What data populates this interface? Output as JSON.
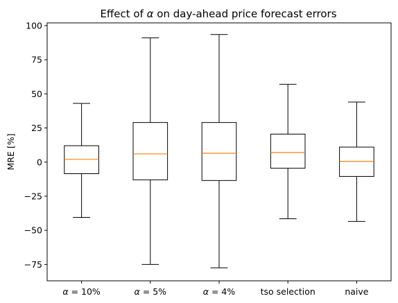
{
  "chart_data": {
    "type": "box",
    "title_prefix": "Effect of ",
    "title_symbol": "α",
    "title_suffix": " on day-ahead price forecast errors",
    "xlabel": "",
    "ylabel": "MRE [%]",
    "ylim": [
      -87,
      102
    ],
    "yticks": [
      100,
      75,
      50,
      25,
      0,
      -25,
      -50,
      -75
    ],
    "grid": false,
    "colors": {
      "box": "#000000",
      "median": "#ff7f0e"
    },
    "boxes": [
      {
        "symbol": "α",
        "label_suffix": " = 10%",
        "whisker_low": -40.5,
        "q1": -8.5,
        "median": 2.0,
        "q3": 12.0,
        "whisker_high": 43.0
      },
      {
        "symbol": "α",
        "label_suffix": " = 5%",
        "whisker_low": -75.0,
        "q1": -13.0,
        "median": 6.0,
        "q3": 29.0,
        "whisker_high": 91.0
      },
      {
        "symbol": "α",
        "label_suffix": " = 4%",
        "whisker_low": -77.5,
        "q1": -13.5,
        "median": 6.5,
        "q3": 29.0,
        "whisker_high": 93.5
      },
      {
        "symbol": "",
        "label_suffix": "tso selection",
        "whisker_low": -41.5,
        "q1": -4.5,
        "median": 7.0,
        "q3": 20.5,
        "whisker_high": 57.0
      },
      {
        "symbol": "",
        "label_suffix": "naive",
        "whisker_low": -43.5,
        "q1": -10.5,
        "median": 0.5,
        "q3": 11.0,
        "whisker_high": 44.0
      }
    ]
  }
}
